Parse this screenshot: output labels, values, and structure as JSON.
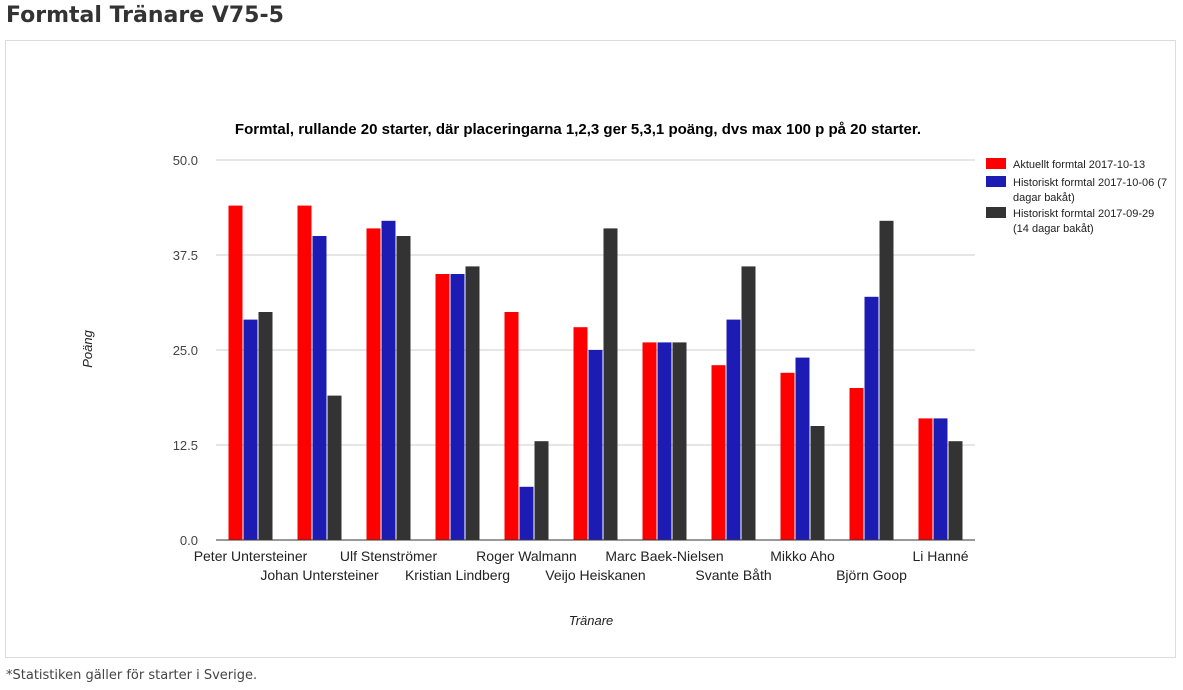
{
  "page": {
    "title": "Formtal Tränare V75-5",
    "footnote": "*Statistiken gäller för starter i Sverige."
  },
  "colors": {
    "series": [
      "#ff0000",
      "#1c1cb4",
      "#333333"
    ],
    "grid": "#cccccc",
    "axis": "#333333"
  },
  "chart_data": {
    "type": "bar",
    "title": "Formtal, rullande 20 starter, där placeringarna 1,2,3 ger 5,3,1 poäng, dvs max 100 p på 20 starter.",
    "xlabel": "Tränare",
    "ylabel": "Poäng",
    "ylim": [
      0,
      50
    ],
    "yticks": [
      "0.0",
      "12.5",
      "25.0",
      "37.5",
      "50.0"
    ],
    "grid": true,
    "legend_position": "right",
    "categories": [
      "Peter Untersteiner",
      "Johan Untersteiner",
      "Ulf Stenströmer",
      "Kristian Lindberg",
      "Roger Walmann",
      "Veijo Heiskanen",
      "Marc Baek-Nielsen",
      "Svante Båth",
      "Mikko Aho",
      "Björn Goop",
      "Li Hanné"
    ],
    "series": [
      {
        "name": "Aktuellt formtal 2017-10-13",
        "legend_lines": [
          "Aktuellt formtal 2017-10-13"
        ],
        "values": [
          44,
          44,
          41,
          35,
          30,
          28,
          26,
          23,
          22,
          20,
          16
        ]
      },
      {
        "name": "Historiskt formtal 2017-10-06 (7 dagar bakåt)",
        "legend_lines": [
          "Historiskt formtal 2017-10-06 (7",
          "dagar bakåt)"
        ],
        "values": [
          29,
          40,
          42,
          35,
          7,
          25,
          26,
          29,
          24,
          32,
          16
        ]
      },
      {
        "name": "Historiskt formtal 2017-09-29 (14 dagar bakåt)",
        "legend_lines": [
          "Historiskt formtal 2017-09-29",
          "(14 dagar bakåt)"
        ],
        "values": [
          30,
          19,
          40,
          36,
          13,
          41,
          26,
          36,
          15,
          42,
          13
        ]
      }
    ]
  }
}
